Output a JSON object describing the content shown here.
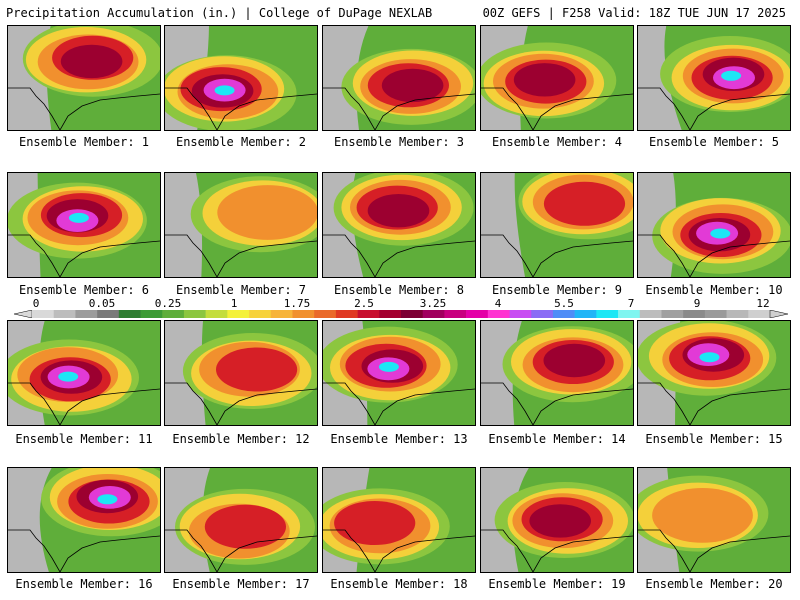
{
  "header": {
    "title_left": "Precipitation Accumulation (in.) | College of DuPage NEXLAB",
    "title_right": "00Z GEFS | F258 Valid: 18Z TUE JUN 17 2025"
  },
  "members": [
    {
      "label": "Ensemble Member: 1",
      "peak": "4"
    },
    {
      "label": "Ensemble Member: 2",
      "peak": "5.5"
    },
    {
      "label": "Ensemble Member: 3",
      "peak": "4"
    },
    {
      "label": "Ensemble Member: 4",
      "peak": "4"
    },
    {
      "label": "Ensemble Member: 5",
      "peak": "5.5"
    },
    {
      "label": "Ensemble Member: 6",
      "peak": "5.5"
    },
    {
      "label": "Ensemble Member: 7",
      "peak": "2.5"
    },
    {
      "label": "Ensemble Member: 8",
      "peak": "4"
    },
    {
      "label": "Ensemble Member: 9",
      "peak": "3.25"
    },
    {
      "label": "Ensemble Member: 10",
      "peak": "5.5"
    },
    {
      "label": "Ensemble Member: 11",
      "peak": "5.5"
    },
    {
      "label": "Ensemble Member: 12",
      "peak": "3.25"
    },
    {
      "label": "Ensemble Member: 13",
      "peak": "5.5"
    },
    {
      "label": "Ensemble Member: 14",
      "peak": "4"
    },
    {
      "label": "Ensemble Member: 15",
      "peak": "5.5"
    },
    {
      "label": "Ensemble Member: 16",
      "peak": "5.5"
    },
    {
      "label": "Ensemble Member: 17",
      "peak": "3.25"
    },
    {
      "label": "Ensemble Member: 18",
      "peak": "3.25"
    },
    {
      "label": "Ensemble Member: 19",
      "peak": "4"
    },
    {
      "label": "Ensemble Member: 20",
      "peak": "2.5"
    }
  ],
  "colorbar": {
    "tick_labels": [
      "0",
      "0.05",
      "0.25",
      "1",
      "1.75",
      "2.5",
      "3.25",
      "4",
      "5.5",
      "7",
      "9",
      "12"
    ],
    "colors": [
      "#d9d9d9",
      "#bdbdbd",
      "#9c9c9c",
      "#7a7a7a",
      "#2f7d32",
      "#3d9b35",
      "#5fae3a",
      "#8cc63f",
      "#c4dd3c",
      "#f4f13a",
      "#f7d23b",
      "#f7b43a",
      "#f1902e",
      "#ea6a2a",
      "#e03a23",
      "#c8102e",
      "#a4002f",
      "#7d0034",
      "#a1005e",
      "#c8007f",
      "#e400a7",
      "#ff33d1",
      "#c84df2",
      "#8a6cf5",
      "#4f8df7",
      "#21b5f7",
      "#1de7f5",
      "#7ff5f0",
      "#bdbdbd",
      "#a0a0a0",
      "#8a8a8a",
      "#9a9a9a",
      "#b8b8b8",
      "#cfcfcf"
    ]
  }
}
